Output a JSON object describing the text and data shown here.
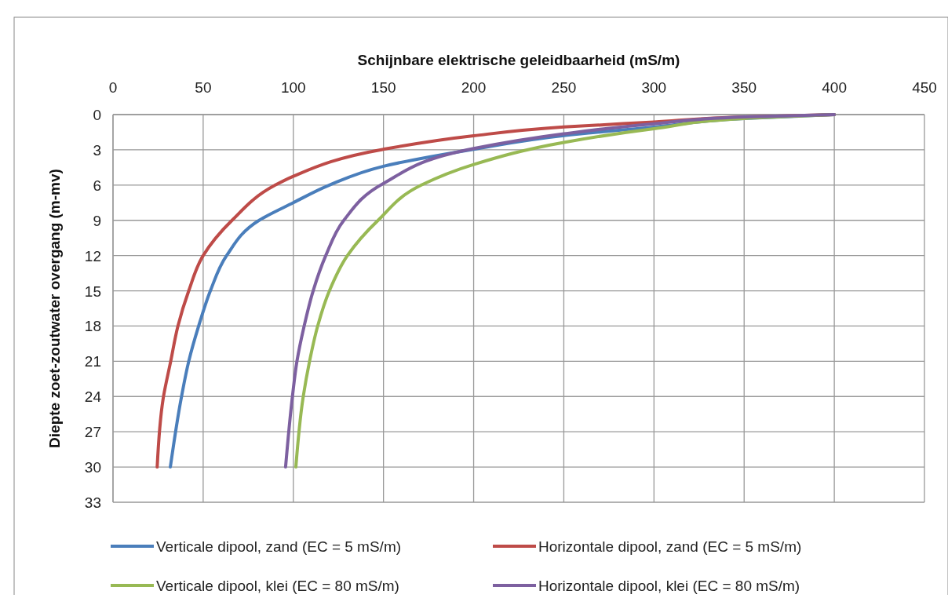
{
  "chart_data": {
    "type": "line",
    "xlabel": "Schijnbare elektrische geleidbaarheid (mS/m)",
    "ylabel": "Diepte zoet-zoutwater overgang (m-mv)",
    "xlim": [
      0,
      450
    ],
    "xticks": [
      0,
      50,
      100,
      150,
      200,
      250,
      300,
      350,
      400,
      450
    ],
    "ylim": [
      33,
      0
    ],
    "yticks": [
      0,
      3,
      6,
      9,
      12,
      15,
      18,
      21,
      24,
      27,
      30,
      33
    ],
    "grid": true,
    "legend": "bottom",
    "marker": "none",
    "line_style": "solid",
    "series": [
      {
        "name": "Verticale dipool, zand (EC = 5 mS/m)",
        "color": "#4a7ebb",
        "x": [
          400,
          350,
          300,
          250,
          200,
          150,
          120,
          100,
          81,
          63,
          54,
          47.5,
          42,
          38,
          31.8
        ],
        "values": [
          0,
          0.33,
          1.06,
          1.79,
          2.95,
          4.4,
          6,
          7.5,
          9,
          12,
          15,
          18,
          21,
          24,
          30
        ]
      },
      {
        "name": "Horizontale dipool, zand (EC = 5 mS/m)",
        "color": "#be4b48",
        "x": [
          400,
          350,
          300,
          250,
          200,
          150,
          100,
          90,
          66,
          50,
          42,
          36,
          32,
          28,
          24.5
        ],
        "values": [
          0,
          0.2,
          0.63,
          1.06,
          1.8,
          2.95,
          5.25,
          6,
          9,
          12,
          15,
          18,
          21,
          24,
          30
        ]
      },
      {
        "name": "Verticale dipool, klei (EC = 80 mS/m)",
        "color": "#98b954",
        "x": [
          400,
          350,
          300,
          250,
          200,
          171,
          147,
          130,
          120,
          113.5,
          109,
          105.5,
          101.4
        ],
        "values": [
          0,
          0.33,
          1.2,
          2.37,
          4.25,
          6,
          9,
          12,
          15,
          18,
          21,
          24,
          30
        ]
      },
      {
        "name": "Horizontale dipool, klei (EC = 80 mS/m)",
        "color": "#7d60a0",
        "x": [
          400,
          350,
          300,
          250,
          200,
          150,
          128,
          118,
          111,
          106,
          102,
          99.5,
          95.7
        ],
        "values": [
          0,
          0.2,
          0.78,
          1.64,
          2.89,
          5.86,
          9,
          12,
          15,
          18,
          21,
          24,
          30
        ]
      }
    ]
  }
}
